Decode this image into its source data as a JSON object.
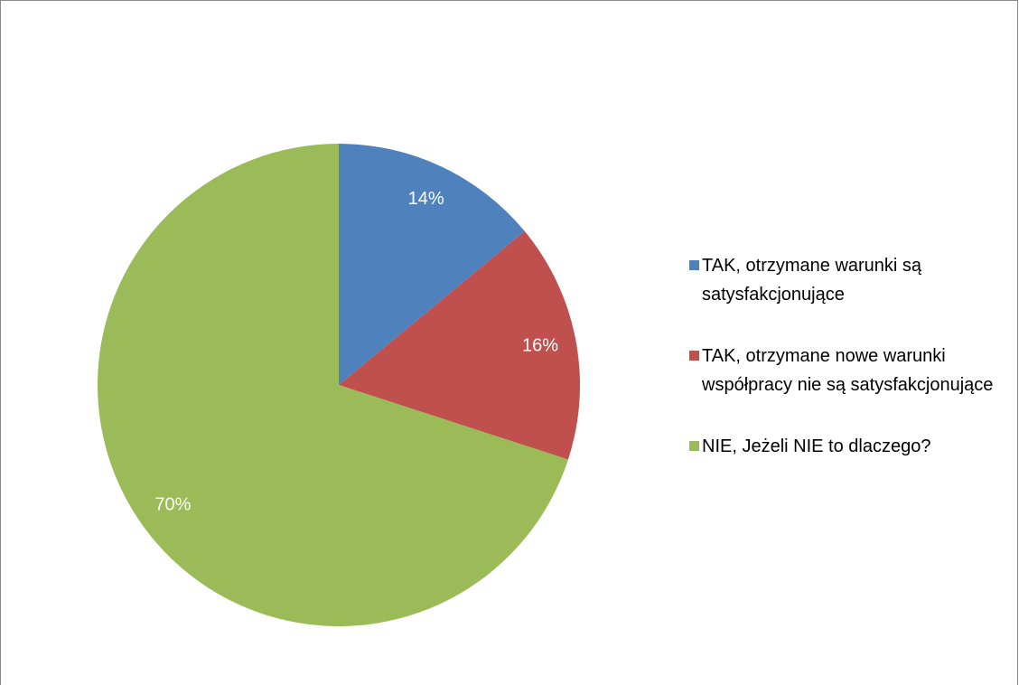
{
  "chart_data": {
    "type": "pie",
    "categories": [
      "TAK, otrzymane warunki są satysfakcjonujące",
      "TAK, otrzymane nowe warunki współpracy nie są satysfakcjonujące",
      "NIE, Jeżeli NIE to dlaczego?"
    ],
    "values": [
      14,
      16,
      70
    ],
    "value_labels": [
      "14%",
      "16%",
      "70%"
    ],
    "colors": [
      "#4f81bd",
      "#c0504d",
      "#9bbb59"
    ],
    "legend": "right"
  }
}
